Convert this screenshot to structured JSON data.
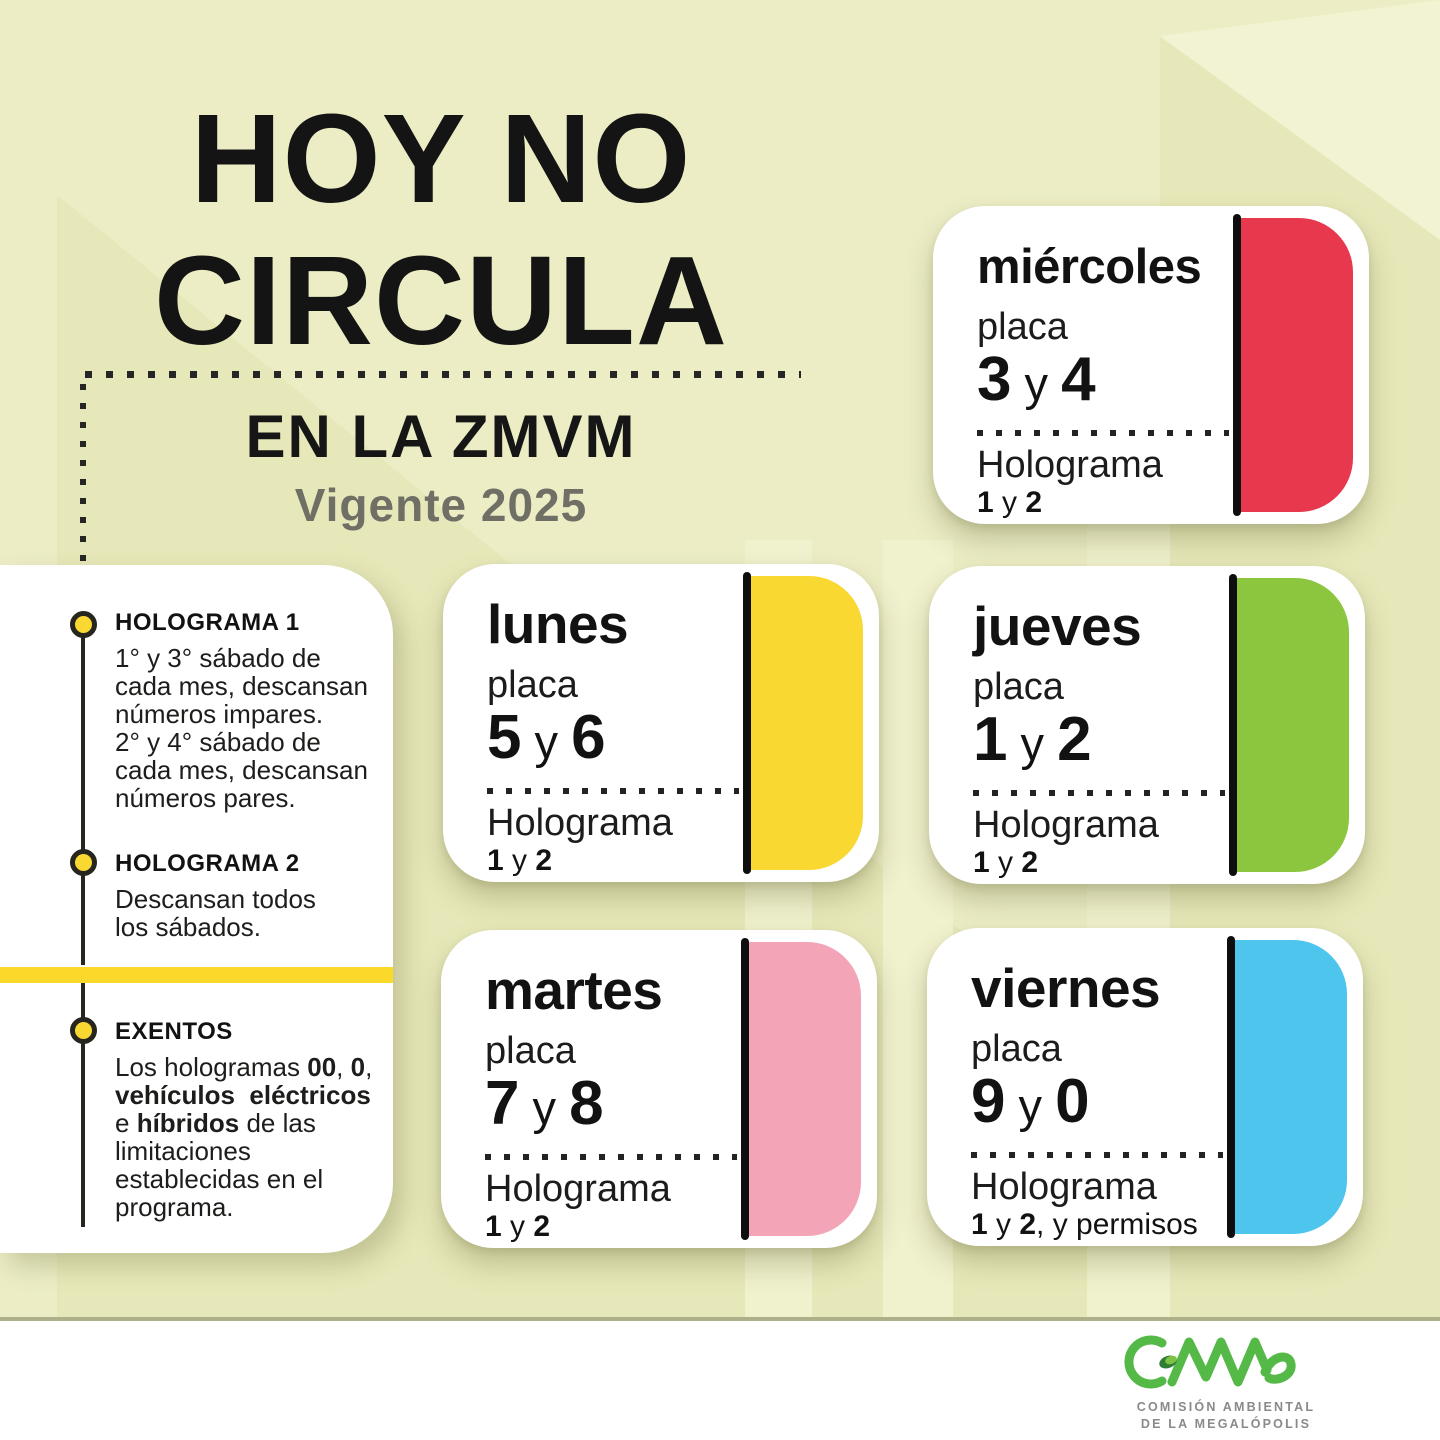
{
  "title": {
    "line1": "HOY NO",
    "line2": "CIRCULA",
    "subtitle": "EN LA ZMVM",
    "validity": "Vigente 2025"
  },
  "legend": {
    "items": [
      {
        "heading": "HOLOGRAMA 1",
        "body": [
          {
            "t": "1° y 3° sábado de\ncada mes, descansan\nnúmeros impares.\n2° y 4° sábado de\ncada mes, descansan\nnúmeros pares.",
            "b": false
          }
        ]
      },
      {
        "heading": "HOLOGRAMA 2",
        "body": [
          {
            "t": "Descansan todos\nlos sábados.",
            "b": false
          }
        ]
      },
      {
        "heading": "EXENTOS",
        "body": [
          {
            "t": "Los hologramas ",
            "b": false
          },
          {
            "t": "00",
            "b": true
          },
          {
            "t": ", ",
            "b": false
          },
          {
            "t": "0",
            "b": true
          },
          {
            "t": ",\n",
            "b": false
          },
          {
            "t": "vehículos  eléctricos",
            "b": true
          },
          {
            "t": "\ne ",
            "b": false
          },
          {
            "t": "híbridos",
            "b": true
          },
          {
            "t": " de las\nlimitaciones\nestablecidas en el\nprograma.",
            "b": false
          }
        ]
      }
    ]
  },
  "cards": [
    {
      "day": "miércoles",
      "placa_label": "placa",
      "plates": [
        {
          "t": "3",
          "b": true
        },
        {
          "t": " y ",
          "b": false
        },
        {
          "t": "4",
          "b": true
        }
      ],
      "holo_label": "Holograma",
      "holo": [
        {
          "t": "1",
          "b": true
        },
        {
          "t": " y ",
          "b": false
        },
        {
          "t": "2",
          "b": true
        }
      ],
      "color": "#e8384e"
    },
    {
      "day": "lunes",
      "placa_label": "placa",
      "plates": [
        {
          "t": "5",
          "b": true
        },
        {
          "t": " y ",
          "b": false
        },
        {
          "t": "6",
          "b": true
        }
      ],
      "holo_label": "Holograma",
      "holo": [
        {
          "t": "1",
          "b": true
        },
        {
          "t": " y ",
          "b": false
        },
        {
          "t": "2",
          "b": true
        }
      ],
      "color": "#f8d831"
    },
    {
      "day": "jueves",
      "placa_label": "placa",
      "plates": [
        {
          "t": "1",
          "b": true
        },
        {
          "t": " y ",
          "b": false
        },
        {
          "t": "2",
          "b": true
        }
      ],
      "holo_label": "Holograma",
      "holo": [
        {
          "t": "1",
          "b": true
        },
        {
          "t": " y ",
          "b": false
        },
        {
          "t": "2",
          "b": true
        }
      ],
      "color": "#8cc63e"
    },
    {
      "day": "martes",
      "placa_label": "placa",
      "plates": [
        {
          "t": "7",
          "b": true
        },
        {
          "t": " y ",
          "b": false
        },
        {
          "t": "8",
          "b": true
        }
      ],
      "holo_label": "Holograma",
      "holo": [
        {
          "t": "1",
          "b": true
        },
        {
          "t": " y ",
          "b": false
        },
        {
          "t": "2",
          "b": true
        }
      ],
      "color": "#f3a4b7"
    },
    {
      "day": "viernes",
      "placa_label": "placa",
      "plates": [
        {
          "t": "9",
          "b": true
        },
        {
          "t": " y ",
          "b": false
        },
        {
          "t": "0",
          "b": true
        }
      ],
      "holo_label": "Holograma",
      "holo": [
        {
          "t": "1",
          "b": true
        },
        {
          "t": " y ",
          "b": false
        },
        {
          "t": "2",
          "b": true
        },
        {
          "t": ", y permisos",
          "b": false
        }
      ],
      "color": "#4ec5ec"
    }
  ],
  "logo": {
    "wordmark": "CAMe",
    "line1": "COMISIÓN AMBIENTAL",
    "line2": "DE LA MEGALÓPOLIS",
    "green": "#55b948",
    "gray": "#8a8a8a"
  },
  "colors": {
    "background": "#ecedc5",
    "background_dark": "#e7e8b9",
    "background_light": "#f2f3d2",
    "accent_yellow": "#fbd92a"
  }
}
